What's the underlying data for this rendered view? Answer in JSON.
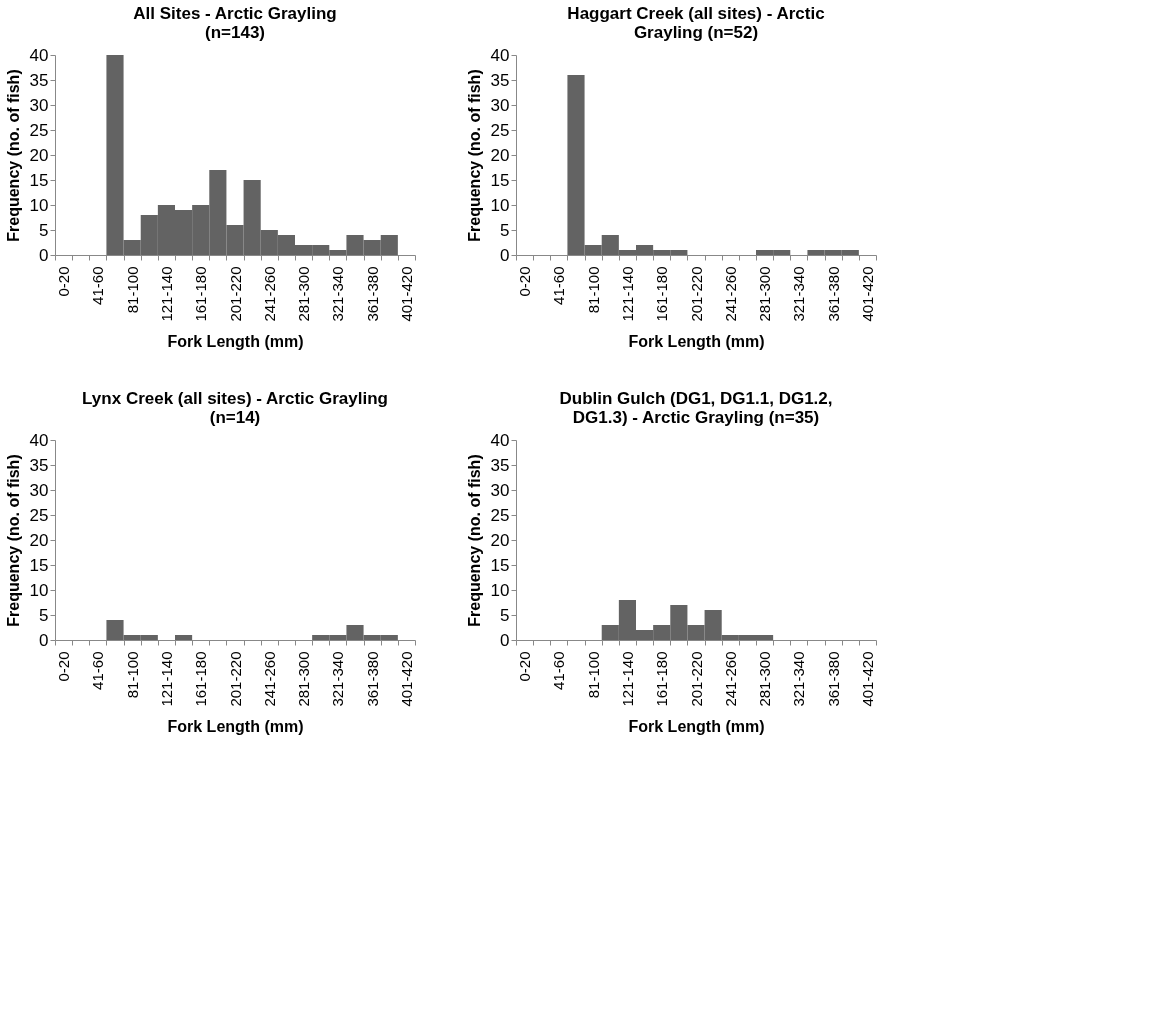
{
  "chart_data": [
    {
      "type": "bar",
      "title": "All Sites  - Arctic Grayling\n(n=143)",
      "xlabel": "Fork Length (mm)",
      "ylabel": "Frequency (no. of fish)",
      "categories": [
        "0-20",
        null,
        "41-60",
        null,
        "81-100",
        null,
        "121-140",
        null,
        "161-180",
        null,
        "201-220",
        null,
        "241-260",
        null,
        "281-300",
        null,
        "321-340",
        null,
        "361-380",
        null,
        "401-420"
      ],
      "values": [
        0,
        0,
        0,
        40,
        3,
        8,
        10,
        9,
        10,
        17,
        6,
        15,
        5,
        4,
        2,
        2,
        1,
        4,
        3,
        4,
        0
      ],
      "color": "#636363",
      "ylim": [
        0,
        40
      ],
      "yticks": [
        0,
        5,
        10,
        15,
        20,
        25,
        30,
        35,
        40
      ],
      "grid": false
    },
    {
      "type": "bar",
      "title": "Haggart Creek (all sites) - Arctic\nGrayling (n=52)",
      "xlabel": "Fork Length (mm)",
      "ylabel": "Frequency (no. of fish)",
      "categories": [
        "0-20",
        null,
        "41-60",
        null,
        "81-100",
        null,
        "121-140",
        null,
        "161-180",
        null,
        "201-220",
        null,
        "241-260",
        null,
        "281-300",
        null,
        "321-340",
        null,
        "361-380",
        null,
        "401-420"
      ],
      "values": [
        0,
        0,
        0,
        36,
        2,
        4,
        1,
        2,
        1,
        1,
        0,
        0,
        0,
        0,
        1,
        1,
        0,
        1,
        1,
        1,
        0
      ],
      "color": "#636363",
      "ylim": [
        0,
        40
      ],
      "yticks": [
        0,
        5,
        10,
        15,
        20,
        25,
        30,
        35,
        40
      ],
      "grid": false
    },
    {
      "type": "bar",
      "title": "Lynx Creek (all sites) - Arctic Grayling\n(n=14)",
      "xlabel": "Fork Length (mm)",
      "ylabel": "Frequency (no. of fish)",
      "categories": [
        "0-20",
        null,
        "41-60",
        null,
        "81-100",
        null,
        "121-140",
        null,
        "161-180",
        null,
        "201-220",
        null,
        "241-260",
        null,
        "281-300",
        null,
        "321-340",
        null,
        "361-380",
        null,
        "401-420"
      ],
      "values": [
        0,
        0,
        0,
        4,
        1,
        1,
        0,
        1,
        0,
        0,
        0,
        0,
        0,
        0,
        0,
        1,
        1,
        3,
        1,
        1,
        0
      ],
      "color": "#636363",
      "ylim": [
        0,
        40
      ],
      "yticks": [
        0,
        5,
        10,
        15,
        20,
        25,
        30,
        35,
        40
      ],
      "grid": false
    },
    {
      "type": "bar",
      "title": "Dublin Gulch (DG1, DG1.1, DG1.2,\nDG1.3) - Arctic Grayling (n=35)",
      "xlabel": "Fork Length (mm)",
      "ylabel": "Frequency (no. of fish)",
      "categories": [
        "0-20",
        null,
        "41-60",
        null,
        "81-100",
        null,
        "121-140",
        null,
        "161-180",
        null,
        "201-220",
        null,
        "241-260",
        null,
        "281-300",
        null,
        "321-340",
        null,
        "361-380",
        null,
        "401-420"
      ],
      "values": [
        0,
        0,
        0,
        0,
        0,
        3,
        8,
        2,
        3,
        7,
        3,
        6,
        1,
        1,
        1,
        0,
        0,
        0,
        0,
        0,
        0
      ],
      "color": "#636363",
      "ylim": [
        0,
        40
      ],
      "yticks": [
        0,
        5,
        10,
        15,
        20,
        25,
        30,
        35,
        40
      ],
      "grid": false
    }
  ]
}
